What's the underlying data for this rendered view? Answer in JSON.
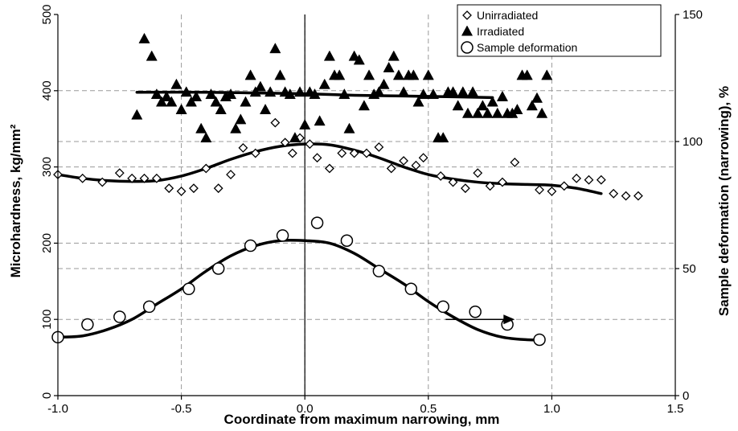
{
  "chart_data": {
    "type": "scatter",
    "xlabel": "Coordinate from maximum narrowing, mm",
    "ylabel_left": "Microhardness, kg/mm²",
    "ylabel_right": "Sample deformation (narrowing), %",
    "xlim": [
      -1.0,
      1.5
    ],
    "ylim_left": [
      0,
      500
    ],
    "ylim_right": [
      0,
      150
    ],
    "x_ticks": [
      "-1.0",
      "-0.5",
      "0.0",
      "0.5",
      "1.0",
      "1.5"
    ],
    "y_left_ticks": [
      "0",
      "100",
      "200",
      "300",
      "400",
      "500"
    ],
    "y_right_ticks": [
      "0",
      "50",
      "100",
      "150"
    ],
    "grid": true,
    "legend_position": "top-right",
    "arrow": {
      "x_start": 0.57,
      "x_end": 0.85,
      "y_left": 100,
      "direction": "right"
    },
    "series": [
      {
        "name": "Unirradiated",
        "marker": "diamond-open",
        "axis": "left",
        "points": [
          [
            -1.0,
            290
          ],
          [
            -0.9,
            285
          ],
          [
            -0.82,
            280
          ],
          [
            -0.75,
            292
          ],
          [
            -0.7,
            285
          ],
          [
            -0.65,
            285
          ],
          [
            -0.6,
            285
          ],
          [
            -0.55,
            272
          ],
          [
            -0.5,
            268
          ],
          [
            -0.45,
            272
          ],
          [
            -0.4,
            298
          ],
          [
            -0.35,
            272
          ],
          [
            -0.3,
            290
          ],
          [
            -0.25,
            325
          ],
          [
            -0.2,
            318
          ],
          [
            -0.12,
            358
          ],
          [
            -0.08,
            332
          ],
          [
            -0.05,
            318
          ],
          [
            -0.02,
            338
          ],
          [
            0.02,
            330
          ],
          [
            0.05,
            312
          ],
          [
            0.1,
            298
          ],
          [
            0.15,
            318
          ],
          [
            0.2,
            318
          ],
          [
            0.25,
            318
          ],
          [
            0.3,
            326
          ],
          [
            0.35,
            298
          ],
          [
            0.4,
            308
          ],
          [
            0.45,
            302
          ],
          [
            0.48,
            312
          ],
          [
            0.55,
            288
          ],
          [
            0.6,
            280
          ],
          [
            0.65,
            272
          ],
          [
            0.7,
            292
          ],
          [
            0.75,
            275
          ],
          [
            0.8,
            280
          ],
          [
            0.85,
            306
          ],
          [
            0.95,
            270
          ],
          [
            1.0,
            268
          ],
          [
            1.05,
            275
          ],
          [
            1.1,
            285
          ],
          [
            1.15,
            283
          ],
          [
            1.2,
            283
          ],
          [
            1.25,
            265
          ],
          [
            1.3,
            262
          ],
          [
            1.35,
            262
          ]
        ]
      },
      {
        "name": "Irradiated",
        "marker": "triangle-filled",
        "axis": "left",
        "points": [
          [
            -0.68,
            368
          ],
          [
            -0.65,
            468
          ],
          [
            -0.62,
            445
          ],
          [
            -0.6,
            395
          ],
          [
            -0.58,
            385
          ],
          [
            -0.56,
            392
          ],
          [
            -0.54,
            385
          ],
          [
            -0.52,
            408
          ],
          [
            -0.5,
            375
          ],
          [
            -0.48,
            398
          ],
          [
            -0.46,
            385
          ],
          [
            -0.44,
            392
          ],
          [
            -0.42,
            350
          ],
          [
            -0.4,
            338
          ],
          [
            -0.38,
            395
          ],
          [
            -0.36,
            385
          ],
          [
            -0.34,
            375
          ],
          [
            -0.32,
            392
          ],
          [
            -0.3,
            395
          ],
          [
            -0.28,
            350
          ],
          [
            -0.26,
            362
          ],
          [
            -0.24,
            385
          ],
          [
            -0.22,
            420
          ],
          [
            -0.2,
            398
          ],
          [
            -0.18,
            405
          ],
          [
            -0.16,
            375
          ],
          [
            -0.14,
            398
          ],
          [
            -0.12,
            455
          ],
          [
            -0.1,
            420
          ],
          [
            -0.08,
            398
          ],
          [
            -0.06,
            395
          ],
          [
            -0.04,
            338
          ],
          [
            -0.02,
            398
          ],
          [
            0.0,
            355
          ],
          [
            0.02,
            398
          ],
          [
            0.04,
            395
          ],
          [
            0.06,
            360
          ],
          [
            0.08,
            408
          ],
          [
            0.1,
            445
          ],
          [
            0.12,
            420
          ],
          [
            0.14,
            420
          ],
          [
            0.16,
            395
          ],
          [
            0.18,
            350
          ],
          [
            0.2,
            445
          ],
          [
            0.22,
            440
          ],
          [
            0.24,
            380
          ],
          [
            0.26,
            420
          ],
          [
            0.28,
            395
          ],
          [
            0.3,
            398
          ],
          [
            0.32,
            408
          ],
          [
            0.34,
            430
          ],
          [
            0.36,
            445
          ],
          [
            0.38,
            420
          ],
          [
            0.4,
            398
          ],
          [
            0.42,
            420
          ],
          [
            0.44,
            420
          ],
          [
            0.46,
            385
          ],
          [
            0.48,
            395
          ],
          [
            0.5,
            420
          ],
          [
            0.52,
            395
          ],
          [
            0.54,
            338
          ],
          [
            0.56,
            338
          ],
          [
            0.58,
            398
          ],
          [
            0.6,
            398
          ],
          [
            0.62,
            380
          ],
          [
            0.64,
            398
          ],
          [
            0.66,
            370
          ],
          [
            0.68,
            398
          ],
          [
            0.7,
            370
          ],
          [
            0.72,
            380
          ],
          [
            0.74,
            370
          ],
          [
            0.76,
            385
          ],
          [
            0.78,
            370
          ],
          [
            0.8,
            392
          ],
          [
            0.82,
            370
          ],
          [
            0.84,
            370
          ],
          [
            0.86,
            375
          ],
          [
            0.88,
            420
          ],
          [
            0.9,
            420
          ],
          [
            0.92,
            380
          ],
          [
            0.94,
            390
          ],
          [
            0.96,
            370
          ],
          [
            0.98,
            420
          ]
        ]
      },
      {
        "name": "Sample deformation",
        "marker": "circle-open",
        "axis": "right",
        "points": [
          [
            -1.0,
            23
          ],
          [
            -0.88,
            28
          ],
          [
            -0.75,
            31
          ],
          [
            -0.63,
            35
          ],
          [
            -0.47,
            42
          ],
          [
            -0.35,
            50
          ],
          [
            -0.22,
            59
          ],
          [
            -0.09,
            63
          ],
          [
            0.05,
            68
          ],
          [
            0.17,
            61
          ],
          [
            0.3,
            49
          ],
          [
            0.43,
            42
          ],
          [
            0.56,
            35
          ],
          [
            0.69,
            33
          ],
          [
            0.82,
            28
          ],
          [
            0.95,
            22
          ]
        ]
      }
    ],
    "fit_curves": [
      {
        "of": "Unirradiated",
        "axis": "left",
        "points": [
          [
            -1.0,
            290
          ],
          [
            -0.9,
            285
          ],
          [
            -0.8,
            282
          ],
          [
            -0.7,
            281
          ],
          [
            -0.6,
            282
          ],
          [
            -0.5,
            288
          ],
          [
            -0.4,
            298
          ],
          [
            -0.3,
            310
          ],
          [
            -0.2,
            320
          ],
          [
            -0.1,
            327
          ],
          [
            0.0,
            330
          ],
          [
            0.1,
            329
          ],
          [
            0.2,
            322
          ],
          [
            0.3,
            312
          ],
          [
            0.4,
            300
          ],
          [
            0.5,
            290
          ],
          [
            0.6,
            284
          ],
          [
            0.7,
            280
          ],
          [
            0.8,
            278
          ],
          [
            0.9,
            277
          ],
          [
            1.0,
            276
          ],
          [
            1.1,
            272
          ],
          [
            1.2,
            265
          ]
        ]
      },
      {
        "of": "Irradiated",
        "axis": "left",
        "points": [
          [
            -0.68,
            398
          ],
          [
            -0.4,
            398
          ],
          [
            -0.2,
            397
          ],
          [
            0.0,
            396
          ],
          [
            0.2,
            394
          ],
          [
            0.4,
            393
          ],
          [
            0.6,
            392
          ],
          [
            0.76,
            391
          ]
        ]
      },
      {
        "of": "Sample deformation",
        "axis": "right",
        "points": [
          [
            -1.0,
            23
          ],
          [
            -0.9,
            23.5
          ],
          [
            -0.8,
            26
          ],
          [
            -0.7,
            30
          ],
          [
            -0.6,
            36
          ],
          [
            -0.5,
            42
          ],
          [
            -0.4,
            49
          ],
          [
            -0.3,
            55
          ],
          [
            -0.2,
            59
          ],
          [
            -0.1,
            61
          ],
          [
            0.0,
            61
          ],
          [
            0.1,
            60
          ],
          [
            0.2,
            56
          ],
          [
            0.3,
            50
          ],
          [
            0.4,
            44
          ],
          [
            0.5,
            37
          ],
          [
            0.6,
            31
          ],
          [
            0.7,
            26
          ],
          [
            0.8,
            23
          ],
          [
            0.9,
            22
          ],
          [
            0.95,
            22
          ]
        ]
      }
    ]
  }
}
